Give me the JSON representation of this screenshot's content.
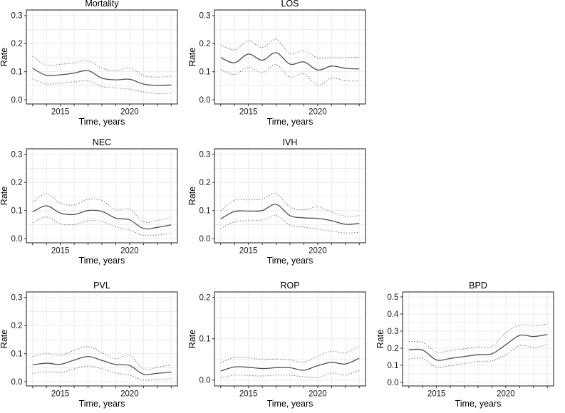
{
  "figure": {
    "background": "#ffffff",
    "panel_border_color": "#3f3f3f",
    "grid_color": "#ececec",
    "line_color": "#55504a",
    "band_color": "#6b665f",
    "tick_color": "#333333",
    "text_color": "#1a1a1a",
    "xlabel": "Time, years",
    "ylabel": "Rate",
    "xtick_labels": [
      "2015",
      "2020"
    ]
  },
  "chart_data": [
    {
      "type": "line",
      "title": "Mortality",
      "xlabel": "Time, years",
      "ylabel": "Rate",
      "x": [
        2013,
        2014,
        2015,
        2016,
        2017,
        2018,
        2019,
        2020,
        2021,
        2022,
        2023
      ],
      "series": [
        {
          "name": "estimate",
          "style": "solid",
          "values": [
            0.112,
            0.087,
            0.089,
            0.095,
            0.104,
            0.077,
            0.071,
            0.073,
            0.056,
            0.051,
            0.053
          ]
        },
        {
          "name": "upper-ci",
          "style": "dotted",
          "values": [
            0.155,
            0.123,
            0.126,
            0.132,
            0.139,
            0.113,
            0.104,
            0.114,
            0.086,
            0.081,
            0.083
          ]
        },
        {
          "name": "lower-ci",
          "style": "dotted",
          "values": [
            0.074,
            0.057,
            0.059,
            0.064,
            0.068,
            0.047,
            0.042,
            0.038,
            0.028,
            0.022,
            0.023
          ]
        }
      ],
      "xlim": [
        2012.55,
        2023.45
      ],
      "ylim": [
        -0.015,
        0.32
      ],
      "xticks": [
        2015,
        2020
      ],
      "yticks": [
        0.0,
        0.1,
        0.2,
        0.3
      ],
      "ytick_labels": [
        "0.0",
        "0.1",
        "0.2",
        "0.3"
      ],
      "grid": true,
      "legend": "none"
    },
    {
      "type": "line",
      "title": "LOS",
      "xlabel": "Time, years",
      "ylabel": "Rate",
      "x": [
        2013,
        2014,
        2015,
        2016,
        2017,
        2018,
        2019,
        2020,
        2021,
        2022,
        2023
      ],
      "series": [
        {
          "name": "estimate",
          "style": "solid",
          "values": [
            0.15,
            0.132,
            0.163,
            0.141,
            0.168,
            0.127,
            0.135,
            0.106,
            0.12,
            0.112,
            0.11
          ]
        },
        {
          "name": "upper-ci",
          "style": "dotted",
          "values": [
            0.196,
            0.178,
            0.21,
            0.186,
            0.215,
            0.164,
            0.175,
            0.149,
            0.15,
            0.15,
            0.152
          ]
        },
        {
          "name": "lower-ci",
          "style": "dotted",
          "values": [
            0.108,
            0.09,
            0.116,
            0.097,
            0.125,
            0.081,
            0.093,
            0.052,
            0.077,
            0.068,
            0.067
          ]
        }
      ],
      "xlim": [
        2012.55,
        2023.45
      ],
      "ylim": [
        -0.015,
        0.32
      ],
      "xticks": [
        2015,
        2020
      ],
      "yticks": [
        0.0,
        0.1,
        0.2,
        0.3
      ],
      "ytick_labels": [
        "0.0",
        "0.1",
        "0.2",
        "0.3"
      ],
      "grid": true,
      "legend": "none"
    },
    {
      "type": "line",
      "title": "NEC",
      "xlabel": "Time, years",
      "ylabel": "Rate",
      "x": [
        2013,
        2014,
        2015,
        2016,
        2017,
        2018,
        2019,
        2020,
        2021,
        2022,
        2023
      ],
      "series": [
        {
          "name": "estimate",
          "style": "solid",
          "values": [
            0.095,
            0.117,
            0.091,
            0.086,
            0.1,
            0.097,
            0.073,
            0.067,
            0.036,
            0.04,
            0.049
          ]
        },
        {
          "name": "upper-ci",
          "style": "dotted",
          "values": [
            0.13,
            0.16,
            0.126,
            0.12,
            0.14,
            0.136,
            0.103,
            0.105,
            0.06,
            0.065,
            0.075
          ]
        },
        {
          "name": "lower-ci",
          "style": "dotted",
          "values": [
            0.057,
            0.077,
            0.053,
            0.05,
            0.064,
            0.061,
            0.042,
            0.03,
            0.012,
            0.013,
            0.018
          ]
        }
      ],
      "xlim": [
        2012.55,
        2023.45
      ],
      "ylim": [
        -0.015,
        0.32
      ],
      "xticks": [
        2015,
        2020
      ],
      "yticks": [
        0.0,
        0.1,
        0.2,
        0.3
      ],
      "ytick_labels": [
        "0.0",
        "0.1",
        "0.2",
        "0.3"
      ],
      "grid": true,
      "legend": "none"
    },
    {
      "type": "line",
      "title": "IVH",
      "xlabel": "Time, years",
      "ylabel": "Rate",
      "x": [
        2013,
        2014,
        2015,
        2016,
        2017,
        2018,
        2019,
        2020,
        2021,
        2022,
        2023
      ],
      "series": [
        {
          "name": "estimate",
          "style": "solid",
          "values": [
            0.07,
            0.097,
            0.098,
            0.1,
            0.122,
            0.082,
            0.074,
            0.072,
            0.064,
            0.051,
            0.054
          ]
        },
        {
          "name": "upper-ci",
          "style": "dotted",
          "values": [
            0.1,
            0.137,
            0.138,
            0.141,
            0.16,
            0.113,
            0.103,
            0.114,
            0.095,
            0.08,
            0.082
          ]
        },
        {
          "name": "lower-ci",
          "style": "dotted",
          "values": [
            0.036,
            0.06,
            0.064,
            0.067,
            0.082,
            0.048,
            0.041,
            0.034,
            0.027,
            0.02,
            0.022
          ]
        }
      ],
      "xlim": [
        2012.55,
        2023.45
      ],
      "ylim": [
        -0.015,
        0.32
      ],
      "xticks": [
        2015,
        2020
      ],
      "yticks": [
        0.0,
        0.1,
        0.2,
        0.3
      ],
      "ytick_labels": [
        "0.0",
        "0.1",
        "0.2",
        "0.3"
      ],
      "grid": true,
      "legend": "none"
    },
    {
      "type": "line",
      "title": "PVL",
      "xlabel": "Time, years",
      "ylabel": "Rate",
      "x": [
        2013,
        2014,
        2015,
        2016,
        2017,
        2018,
        2019,
        2020,
        2021,
        2022,
        2023
      ],
      "series": [
        {
          "name": "estimate",
          "style": "solid",
          "values": [
            0.06,
            0.066,
            0.062,
            0.077,
            0.09,
            0.076,
            0.061,
            0.058,
            0.027,
            0.03,
            0.034
          ]
        },
        {
          "name": "upper-ci",
          "style": "dotted",
          "values": [
            0.09,
            0.1,
            0.094,
            0.111,
            0.125,
            0.104,
            0.082,
            0.095,
            0.045,
            0.052,
            0.06
          ]
        },
        {
          "name": "lower-ci",
          "style": "dotted",
          "values": [
            0.03,
            0.036,
            0.032,
            0.046,
            0.056,
            0.046,
            0.031,
            0.024,
            0.006,
            0.008,
            0.011
          ]
        }
      ],
      "xlim": [
        2012.55,
        2023.45
      ],
      "ylim": [
        -0.015,
        0.32
      ],
      "xticks": [
        2015,
        2020
      ],
      "yticks": [
        0.0,
        0.1,
        0.2,
        0.3
      ],
      "ytick_labels": [
        "0.0",
        "0.1",
        "0.2",
        "0.3"
      ],
      "grid": true,
      "legend": "none"
    },
    {
      "type": "line",
      "title": "ROP",
      "xlabel": "Time, years",
      "ylabel": "Rate",
      "x": [
        2013,
        2014,
        2015,
        2016,
        2017,
        2018,
        2019,
        2020,
        2021,
        2022,
        2023
      ],
      "series": [
        {
          "name": "estimate",
          "style": "solid",
          "values": [
            0.022,
            0.032,
            0.031,
            0.028,
            0.03,
            0.03,
            0.024,
            0.035,
            0.043,
            0.039,
            0.053
          ]
        },
        {
          "name": "upper-ci",
          "style": "dotted",
          "values": [
            0.042,
            0.055,
            0.054,
            0.05,
            0.051,
            0.049,
            0.043,
            0.058,
            0.07,
            0.066,
            0.082
          ]
        },
        {
          "name": "lower-ci",
          "style": "dotted",
          "values": [
            0.005,
            0.012,
            0.011,
            0.01,
            0.012,
            0.012,
            0.008,
            0.006,
            0.017,
            0.013,
            0.023
          ]
        }
      ],
      "xlim": [
        2012.55,
        2023.45
      ],
      "ylim": [
        -0.014,
        0.213
      ],
      "xticks": [
        2015,
        2020
      ],
      "yticks": [
        0.0,
        0.1,
        0.2
      ],
      "ytick_labels": [
        "0.0",
        "0.1",
        "0.2"
      ],
      "grid": true,
      "legend": "none"
    },
    {
      "type": "line",
      "title": "BPD",
      "xlabel": "Time, years",
      "ylabel": "Rate",
      "x": [
        2013,
        2014,
        2015,
        2016,
        2017,
        2018,
        2019,
        2020,
        2021,
        2022,
        2023
      ],
      "series": [
        {
          "name": "estimate",
          "style": "solid",
          "values": [
            0.19,
            0.189,
            0.131,
            0.14,
            0.151,
            0.162,
            0.167,
            0.22,
            0.275,
            0.268,
            0.28
          ]
        },
        {
          "name": "upper-ci",
          "style": "dotted",
          "values": [
            0.238,
            0.234,
            0.176,
            0.186,
            0.196,
            0.208,
            0.21,
            0.29,
            0.335,
            0.33,
            0.342
          ]
        },
        {
          "name": "lower-ci",
          "style": "dotted",
          "values": [
            0.136,
            0.14,
            0.089,
            0.098,
            0.11,
            0.123,
            0.126,
            0.16,
            0.215,
            0.204,
            0.221
          ]
        }
      ],
      "xlim": [
        2012.55,
        2023.45
      ],
      "ylim": [
        -0.021,
        0.529
      ],
      "xticks": [
        2015,
        2020
      ],
      "yticks": [
        0.0,
        0.1,
        0.2,
        0.3,
        0.4,
        0.5
      ],
      "ytick_labels": [
        "0.0",
        "0.1",
        "0.2",
        "0.3",
        "0.4",
        "0.5"
      ],
      "grid": true,
      "legend": "none"
    }
  ]
}
